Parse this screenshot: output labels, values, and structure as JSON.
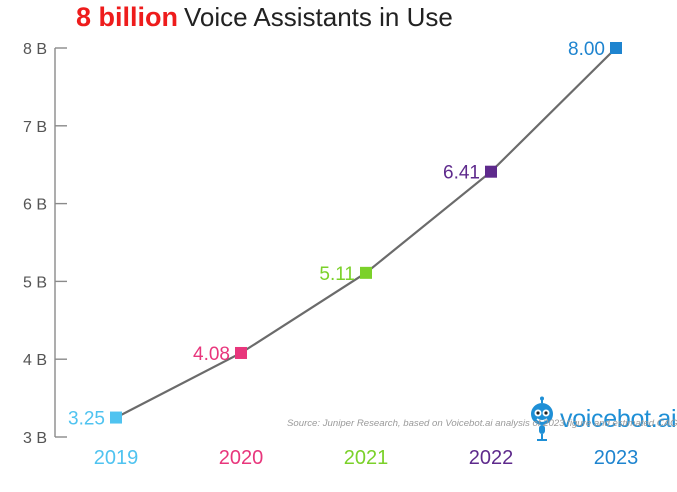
{
  "chart_data": {
    "type": "line",
    "title_highlight": "8 billion",
    "title": "Voice Assistants in Use",
    "categories": [
      "2019",
      "2020",
      "2021",
      "2022",
      "2023"
    ],
    "values": [
      3.25,
      4.08,
      5.11,
      6.41,
      8.0
    ],
    "data_labels": [
      "3.25",
      "4.08",
      "5.11",
      "6.41",
      "8.00"
    ],
    "point_colors": [
      "#4fc3f0",
      "#e8367c",
      "#7bd12a",
      "#5e2a8c",
      "#1e84cf"
    ],
    "label_colors": [
      "#4fc3f0",
      "#e8367c",
      "#7bd12a",
      "#5e2a8c",
      "#1e84cf"
    ],
    "year_colors": [
      "#4fc3f0",
      "#e8367c",
      "#7bd12a",
      "#5e2a8c",
      "#1e84cf"
    ],
    "line_color": "#6b6b6b",
    "y_ticks": [
      3,
      4,
      5,
      6,
      7,
      8
    ],
    "y_tick_labels": [
      "3 B",
      "4 B",
      "5 B",
      "6 B",
      "7 B",
      "8 B"
    ],
    "ylim": [
      3,
      8
    ],
    "grid": false,
    "xlabel": "",
    "ylabel": ""
  },
  "brand": {
    "name": "voicebot.ai",
    "color": "#1e8fd6"
  },
  "source": "Source: Juniper Research, based on Voicebot.ai analysis of 2023 figure and estimated CAGR"
}
